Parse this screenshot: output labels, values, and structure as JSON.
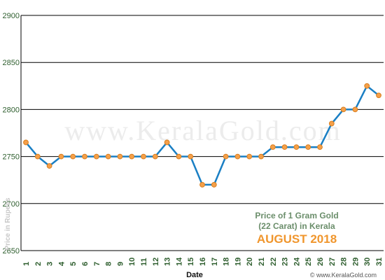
{
  "chart_data": {
    "type": "line",
    "xlabel": "Date",
    "ylabel": "Price in Rupees",
    "ylim": [
      2650,
      2900
    ],
    "yticks": [
      2650,
      2700,
      2750,
      2800,
      2850,
      2900
    ],
    "grid": true,
    "x": [
      1,
      2,
      3,
      4,
      5,
      6,
      7,
      8,
      9,
      10,
      11,
      12,
      13,
      14,
      15,
      16,
      17,
      18,
      19,
      20,
      21,
      22,
      23,
      24,
      25,
      26,
      27,
      28,
      29,
      30,
      31
    ],
    "series": [
      {
        "values": [
          2765,
          2750,
          2740,
          2750,
          2750,
          2750,
          2750,
          2750,
          2750,
          2750,
          2750,
          2750,
          2765,
          2750,
          2750,
          2720,
          2720,
          2750,
          2750,
          2750,
          2750,
          2760,
          2760,
          2760,
          2760,
          2760,
          2785,
          2800,
          2800,
          2825,
          2815
        ]
      }
    ],
    "annotation_lines": [
      "Price of 1 Gram Gold",
      "(22 Carat) in Kerala"
    ],
    "annotation_highlight": "AUGUST 2018",
    "watermark": "www.KeralaGold.com",
    "site_credit": "© www.KeralaGold.com",
    "colors": {
      "line": "#1a7fc4",
      "marker": "#f5a04a",
      "marker_edge": "#d97f20",
      "axis_text": "#2e5e2e",
      "highlight": "#f0962d"
    }
  }
}
